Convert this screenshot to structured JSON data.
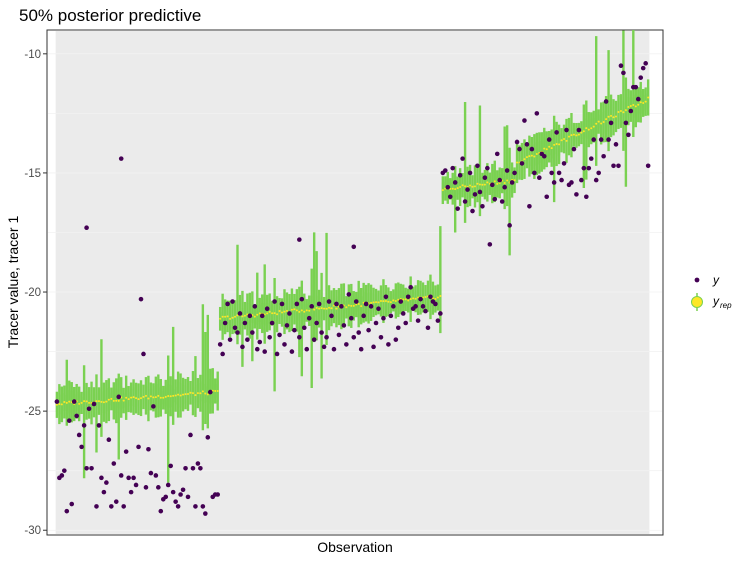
{
  "chart_data": {
    "type": "scatter",
    "title": "50% posterior predictive",
    "xlabel": "Observation",
    "ylabel": "Tracer value, tracer 1",
    "ylim": [
      -30.2,
      -9.0
    ],
    "xlim": [
      -4,
      245
    ],
    "n_observations": 240,
    "yticks": [
      -10,
      -15,
      -20,
      -25,
      -30
    ],
    "ytick_labels": [
      "-10",
      "-15",
      "-20",
      "-25",
      "-30"
    ],
    "grid": true,
    "legend": {
      "position": "right",
      "entries": [
        {
          "symbol": "y",
          "sub": "",
          "role": "observed"
        },
        {
          "symbol": "y",
          "sub": "rep",
          "role": "replicated"
        }
      ]
    },
    "colors": {
      "observed_points": "#440154",
      "interval": "#7ad151",
      "median": "#fde725",
      "panel": "#ebebeb",
      "grid": "#f2f2f2"
    },
    "segments": [
      {
        "start": 0,
        "end": 65,
        "median_start": -24.7,
        "median_end": -24.2,
        "half_width": 0.65
      },
      {
        "start": 66,
        "end": 155,
        "median_start": -21.1,
        "median_end": -20.2,
        "half_width": 0.65
      },
      {
        "start": 156,
        "end": 185,
        "median_start": -15.7,
        "median_end": -15.3,
        "half_width": 0.6
      },
      {
        "start": 186,
        "end": 239,
        "median_start": -14.6,
        "median_end": -11.9,
        "half_width": 0.65
      }
    ],
    "observed_points": [
      [
        0,
        -24.6
      ],
      [
        1,
        -27.8
      ],
      [
        2,
        -27.7
      ],
      [
        3,
        -27.5
      ],
      [
        4,
        -29.2
      ],
      [
        5,
        -25.4
      ],
      [
        6,
        -28.9
      ],
      [
        7,
        -24.6
      ],
      [
        8,
        -25.2
      ],
      [
        9,
        -26.0
      ],
      [
        10,
        -26.5
      ],
      [
        11,
        -25.6
      ],
      [
        12,
        -27.4
      ],
      [
        13,
        -24.9
      ],
      [
        14,
        -27.4
      ],
      [
        15,
        -24.7
      ],
      [
        16,
        -29.0
      ],
      [
        17,
        -25.6
      ],
      [
        18,
        -27.8
      ],
      [
        19,
        -28.4
      ],
      [
        20,
        -28.0
      ],
      [
        21,
        -26.2
      ],
      [
        22,
        -29.0
      ],
      [
        23,
        -27.2
      ],
      [
        24,
        -28.8
      ],
      [
        25,
        -24.4
      ],
      [
        26,
        -27.7
      ],
      [
        27,
        -29.0
      ],
      [
        28,
        -26.7
      ],
      [
        29,
        -27.8
      ],
      [
        30,
        -28.4
      ],
      [
        31,
        -27.8
      ],
      [
        32,
        -28.1
      ],
      [
        33,
        -26.5
      ],
      [
        34,
        -20.3
      ],
      [
        35,
        -22.6
      ],
      [
        36,
        -28.2
      ],
      [
        37,
        -26.6
      ],
      [
        38,
        -27.6
      ],
      [
        39,
        -24.8
      ],
      [
        40,
        -27.7
      ],
      [
        41,
        -28.2
      ],
      [
        42,
        -29.2
      ],
      [
        43,
        -28.7
      ],
      [
        44,
        -28.6
      ],
      [
        45,
        -28.1
      ],
      [
        46,
        -27.3
      ],
      [
        47,
        -28.4
      ],
      [
        48,
        -28.8
      ],
      [
        49,
        -29.0
      ],
      [
        50,
        -28.5
      ],
      [
        51,
        -28.3
      ],
      [
        52,
        -27.4
      ],
      [
        53,
        -28.6
      ],
      [
        54,
        -26.0
      ],
      [
        55,
        -27.4
      ],
      [
        56,
        -29.0
      ],
      [
        57,
        -27.2
      ],
      [
        58,
        -27.4
      ],
      [
        59,
        -29.0
      ],
      [
        60,
        -29.3
      ],
      [
        61,
        -26.1
      ],
      [
        62,
        -24.2
      ],
      [
        63,
        -28.6
      ],
      [
        64,
        -28.5
      ],
      [
        65,
        -28.5
      ],
      [
        12,
        -17.3
      ],
      [
        26,
        -14.4
      ],
      [
        66,
        -22.2
      ],
      [
        67,
        -22.6
      ],
      [
        68,
        -21.3
      ],
      [
        69,
        -20.5
      ],
      [
        70,
        -22.0
      ],
      [
        71,
        -20.4
      ],
      [
        72,
        -21.5
      ],
      [
        73,
        -21.7
      ],
      [
        74,
        -20.9
      ],
      [
        75,
        -22.3
      ],
      [
        76,
        -21.3
      ],
      [
        77,
        -22.0
      ],
      [
        78,
        -21.0
      ],
      [
        79,
        -21.7
      ],
      [
        80,
        -20.6
      ],
      [
        81,
        -22.4
      ],
      [
        82,
        -22.1
      ],
      [
        83,
        -21.0
      ],
      [
        84,
        -22.5
      ],
      [
        85,
        -20.7
      ],
      [
        86,
        -21.9
      ],
      [
        87,
        -21.3
      ],
      [
        88,
        -20.4
      ],
      [
        89,
        -22.6
      ],
      [
        90,
        -21.8
      ],
      [
        91,
        -20.5
      ],
      [
        92,
        -22.2
      ],
      [
        93,
        -21.4
      ],
      [
        94,
        -20.9
      ],
      [
        95,
        -22.5
      ],
      [
        96,
        -21.6
      ],
      [
        97,
        -20.5
      ],
      [
        98,
        -21.9
      ],
      [
        99,
        -20.3
      ],
      [
        100,
        -21.5
      ],
      [
        101,
        -22.4
      ],
      [
        102,
        -21.1
      ],
      [
        103,
        -20.6
      ],
      [
        104,
        -22.0
      ],
      [
        105,
        -21.3
      ],
      [
        106,
        -20.5
      ],
      [
        107,
        -21.7
      ],
      [
        108,
        -22.3
      ],
      [
        109,
        -21.9
      ],
      [
        110,
        -20.4
      ],
      [
        111,
        -21.0
      ],
      [
        112,
        -22.4
      ],
      [
        113,
        -20.5
      ],
      [
        114,
        -21.8
      ],
      [
        115,
        -20.6
      ],
      [
        116,
        -21.4
      ],
      [
        117,
        -22.2
      ],
      [
        118,
        -20.1
      ],
      [
        119,
        -21.1
      ],
      [
        120,
        -21.9
      ],
      [
        121,
        -20.4
      ],
      [
        122,
        -21.7
      ],
      [
        123,
        -22.4
      ],
      [
        124,
        -21.0
      ],
      [
        125,
        -20.5
      ],
      [
        126,
        -21.6
      ],
      [
        127,
        -20.6
      ],
      [
        128,
        -22.3
      ],
      [
        129,
        -21.3
      ],
      [
        130,
        -20.7
      ],
      [
        131,
        -21.9
      ],
      [
        132,
        -21.1
      ],
      [
        133,
        -20.2
      ],
      [
        134,
        -22.2
      ],
      [
        135,
        -21.0
      ],
      [
        136,
        -20.6
      ],
      [
        137,
        -22.0
      ],
      [
        138,
        -21.5
      ],
      [
        139,
        -20.4
      ],
      [
        140,
        -20.9
      ],
      [
        141,
        -21.3
      ],
      [
        142,
        -20.2
      ],
      [
        143,
        -19.8
      ],
      [
        144,
        -20.7
      ],
      [
        145,
        -20.6
      ],
      [
        146,
        -21.2
      ],
      [
        147,
        -20.3
      ],
      [
        148,
        -20.6
      ],
      [
        149,
        -20.8
      ],
      [
        150,
        -21.5
      ],
      [
        151,
        -20.2
      ],
      [
        152,
        -20.4
      ],
      [
        153,
        -20.5
      ],
      [
        154,
        -21.2
      ],
      [
        155,
        -20.9
      ],
      [
        98,
        -17.8
      ],
      [
        120,
        -18.1
      ],
      [
        156,
        -15.0
      ],
      [
        157,
        -14.9
      ],
      [
        158,
        -15.6
      ],
      [
        159,
        -16.0
      ],
      [
        160,
        -14.8
      ],
      [
        161,
        -15.4
      ],
      [
        162,
        -16.5
      ],
      [
        163,
        -15.1
      ],
      [
        164,
        -14.4
      ],
      [
        165,
        -16.2
      ],
      [
        166,
        -15.7
      ],
      [
        167,
        -15.0
      ],
      [
        168,
        -16.6
      ],
      [
        169,
        -15.9
      ],
      [
        170,
        -14.7
      ],
      [
        171,
        -15.8
      ],
      [
        172,
        -16.4
      ],
      [
        173,
        -15.2
      ],
      [
        174,
        -14.8
      ],
      [
        175,
        -18.0
      ],
      [
        176,
        -15.5
      ],
      [
        177,
        -16.1
      ],
      [
        178,
        -14.2
      ],
      [
        179,
        -15.3
      ],
      [
        180,
        -16.2
      ],
      [
        181,
        -15.6
      ],
      [
        182,
        -14.9
      ],
      [
        183,
        -17.2
      ],
      [
        184,
        -15.4
      ],
      [
        185,
        -15.0
      ],
      [
        186,
        -13.7
      ],
      [
        187,
        -14.0
      ],
      [
        188,
        -14.6
      ],
      [
        189,
        -12.8
      ],
      [
        190,
        -13.8
      ],
      [
        191,
        -16.4
      ],
      [
        192,
        -14.0
      ],
      [
        193,
        -15.0
      ],
      [
        194,
        -12.5
      ],
      [
        195,
        -15.2
      ],
      [
        196,
        -14.2
      ],
      [
        197,
        -14.3
      ],
      [
        198,
        -16.0
      ],
      [
        199,
        -13.6
      ],
      [
        200,
        -15.0
      ],
      [
        201,
        -15.4
      ],
      [
        202,
        -13.3
      ],
      [
        203,
        -15.0
      ],
      [
        204,
        -15.3
      ],
      [
        205,
        -14.6
      ],
      [
        206,
        -13.2
      ],
      [
        207,
        -15.5
      ],
      [
        208,
        -15.4
      ],
      [
        209,
        -14.0
      ],
      [
        210,
        -15.9
      ],
      [
        211,
        -13.2
      ],
      [
        212,
        -15.3
      ],
      [
        213,
        -14.8
      ],
      [
        214,
        -16.0
      ],
      [
        215,
        -14.8
      ],
      [
        216,
        -14.4
      ],
      [
        217,
        -13.6
      ],
      [
        218,
        -15.3
      ],
      [
        219,
        -15.0
      ],
      [
        220,
        -13.6
      ],
      [
        221,
        -14.3
      ],
      [
        222,
        -12.0
      ],
      [
        223,
        -13.6
      ],
      [
        224,
        -12.9
      ],
      [
        225,
        -14.7
      ],
      [
        226,
        -13.8
      ],
      [
        227,
        -14.7
      ],
      [
        228,
        -10.5
      ],
      [
        229,
        -10.8
      ],
      [
        230,
        -12.9
      ],
      [
        231,
        -13.4
      ],
      [
        232,
        -12.4
      ],
      [
        233,
        -11.4
      ],
      [
        234,
        -11.4
      ],
      [
        235,
        -11.9
      ],
      [
        236,
        -11.0
      ],
      [
        237,
        -10.6
      ],
      [
        238,
        -10.4
      ],
      [
        239,
        -14.7
      ]
    ]
  }
}
